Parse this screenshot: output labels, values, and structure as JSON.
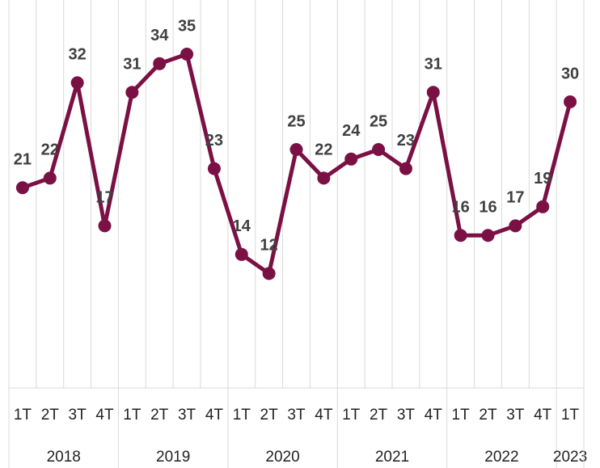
{
  "chart_data": {
    "type": "line",
    "categories": [
      "1T",
      "2T",
      "3T",
      "4T",
      "1T",
      "2T",
      "3T",
      "4T",
      "1T",
      "2T",
      "3T",
      "4T",
      "1T",
      "2T",
      "3T",
      "4T",
      "1T",
      "2T",
      "3T",
      "4T",
      "1T"
    ],
    "category_groups": [
      "2018",
      "2019",
      "2020",
      "2021",
      "2022",
      "2023"
    ],
    "series": [
      {
        "color": "#7b1045",
        "values": [
          21,
          22,
          32,
          17,
          31,
          34,
          35,
          23,
          14,
          12,
          25,
          22,
          24,
          25,
          23,
          31,
          16,
          16,
          17,
          19,
          30
        ]
      }
    ],
    "ylim": [
      0,
      40
    ],
    "grid": true
  }
}
